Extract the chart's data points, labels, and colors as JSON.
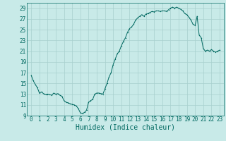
{
  "title": "",
  "xlabel": "Humidex (Indice chaleur)",
  "ylabel": "",
  "background_color": "#c8eae8",
  "grid_color": "#a8d0ce",
  "line_color": "#006860",
  "ylim": [
    9,
    30
  ],
  "xlim": [
    -0.5,
    23.5
  ],
  "yticks": [
    9,
    11,
    13,
    15,
    17,
    19,
    21,
    23,
    25,
    27,
    29
  ],
  "xticks": [
    0,
    1,
    2,
    3,
    4,
    5,
    6,
    7,
    8,
    9,
    10,
    11,
    12,
    13,
    14,
    15,
    16,
    17,
    18,
    19,
    20,
    21,
    22,
    23
  ],
  "x": [
    0,
    0.25,
    0.5,
    0.75,
    1,
    1.25,
    1.5,
    1.75,
    2,
    2.25,
    2.5,
    2.75,
    3,
    3.25,
    3.5,
    3.75,
    4,
    4.25,
    4.5,
    4.75,
    5,
    5.25,
    5.5,
    5.75,
    6,
    6.25,
    6.5,
    6.75,
    7,
    7.25,
    7.5,
    7.75,
    8,
    8.25,
    8.5,
    8.75,
    9,
    9.25,
    9.5,
    9.75,
    10,
    10.25,
    10.5,
    10.75,
    11,
    11.25,
    11.5,
    11.75,
    12,
    12.25,
    12.5,
    12.75,
    13,
    13.25,
    13.5,
    13.75,
    14,
    14.25,
    14.5,
    14.75,
    15,
    15.25,
    15.5,
    15.75,
    16,
    16.25,
    16.5,
    16.75,
    17,
    17.25,
    17.5,
    17.75,
    18,
    18.25,
    18.5,
    18.75,
    19,
    19.25,
    19.5,
    19.75,
    20,
    20.25,
    20.5,
    20.75,
    21,
    21.25,
    21.5,
    21.75,
    22,
    22.25,
    22.5,
    22.75,
    23
  ],
  "y": [
    16.5,
    15.5,
    14.8,
    14.2,
    13.2,
    13.4,
    13.1,
    12.9,
    13.0,
    12.9,
    12.8,
    13.2,
    13.0,
    13.1,
    12.8,
    12.6,
    11.8,
    11.5,
    11.4,
    11.2,
    11.1,
    11.0,
    10.8,
    10.3,
    9.5,
    9.4,
    9.6,
    10.0,
    11.5,
    11.8,
    12.0,
    13.0,
    13.2,
    13.2,
    13.1,
    13.0,
    14.0,
    15.0,
    16.2,
    17.0,
    18.5,
    19.5,
    20.5,
    21.0,
    22.0,
    22.8,
    23.5,
    24.5,
    25.2,
    25.5,
    26.0,
    26.8,
    27.2,
    27.5,
    27.8,
    27.5,
    27.9,
    28.0,
    28.2,
    28.4,
    28.3,
    28.5,
    28.5,
    28.4,
    28.5,
    28.5,
    28.4,
    28.7,
    29.0,
    29.2,
    29.0,
    29.2,
    29.0,
    28.8,
    28.5,
    28.0,
    27.8,
    27.3,
    26.8,
    26.0,
    25.8,
    27.5,
    24.0,
    23.5,
    21.5,
    21.0,
    21.2,
    21.0,
    21.3,
    21.0,
    20.8,
    21.0,
    21.2
  ],
  "tick_fontsize": 5.5,
  "xlabel_fontsize": 7
}
